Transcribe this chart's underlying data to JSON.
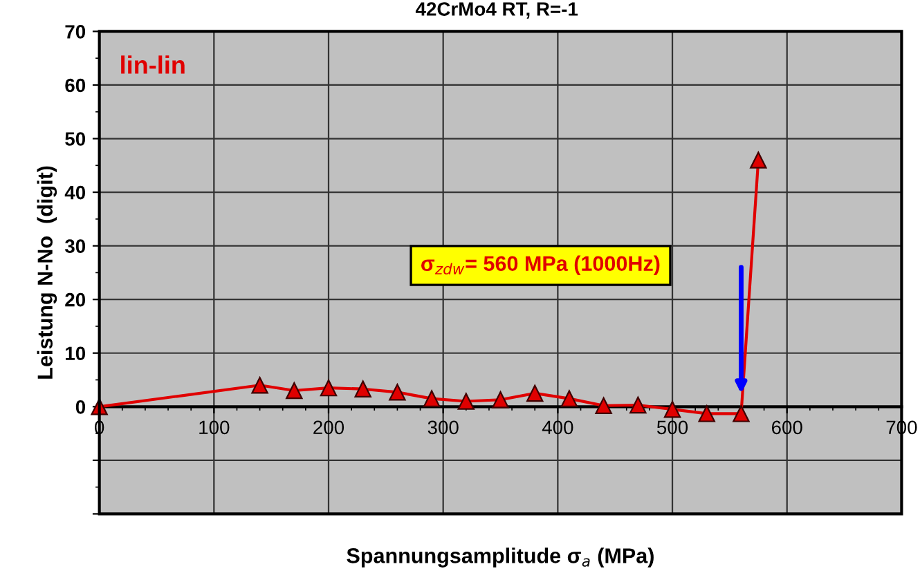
{
  "chart_data": {
    "type": "line",
    "title": "42CrMo4 RT, R=-1",
    "xlabel": "Spannungsamplitude σ$_{a}$ (MPa)",
    "ylabel": "Leistung N-No  (digit)",
    "x": [
      0,
      140,
      170,
      200,
      230,
      260,
      290,
      320,
      350,
      380,
      410,
      440,
      470,
      500,
      530,
      560,
      575
    ],
    "series": [
      {
        "color": "#e00000",
        "values": [
          0,
          4,
          3,
          3.5,
          3.3,
          2.7,
          1.5,
          1,
          1.3,
          2.5,
          1.5,
          0.2,
          0.3,
          -0.5,
          -1.3,
          -1.3,
          46
        ]
      }
    ],
    "xlim": [
      0,
      700
    ],
    "xticks": [
      0,
      100,
      200,
      300,
      400,
      500,
      600,
      700
    ],
    "ylim": [
      -20,
      70
    ],
    "yticks": [
      {
        "value": -20,
        "label": null
      },
      {
        "value": -10,
        "label": null
      },
      0,
      10,
      20,
      30,
      40,
      50,
      60,
      70
    ],
    "annotations": [
      "lin-lin",
      "σ$_{zdw}$= 560 MPa (1000Hz)"
    ],
    "grid": true,
    "marker": "triangle",
    "line_style": "solid",
    "legend": false
  }
}
